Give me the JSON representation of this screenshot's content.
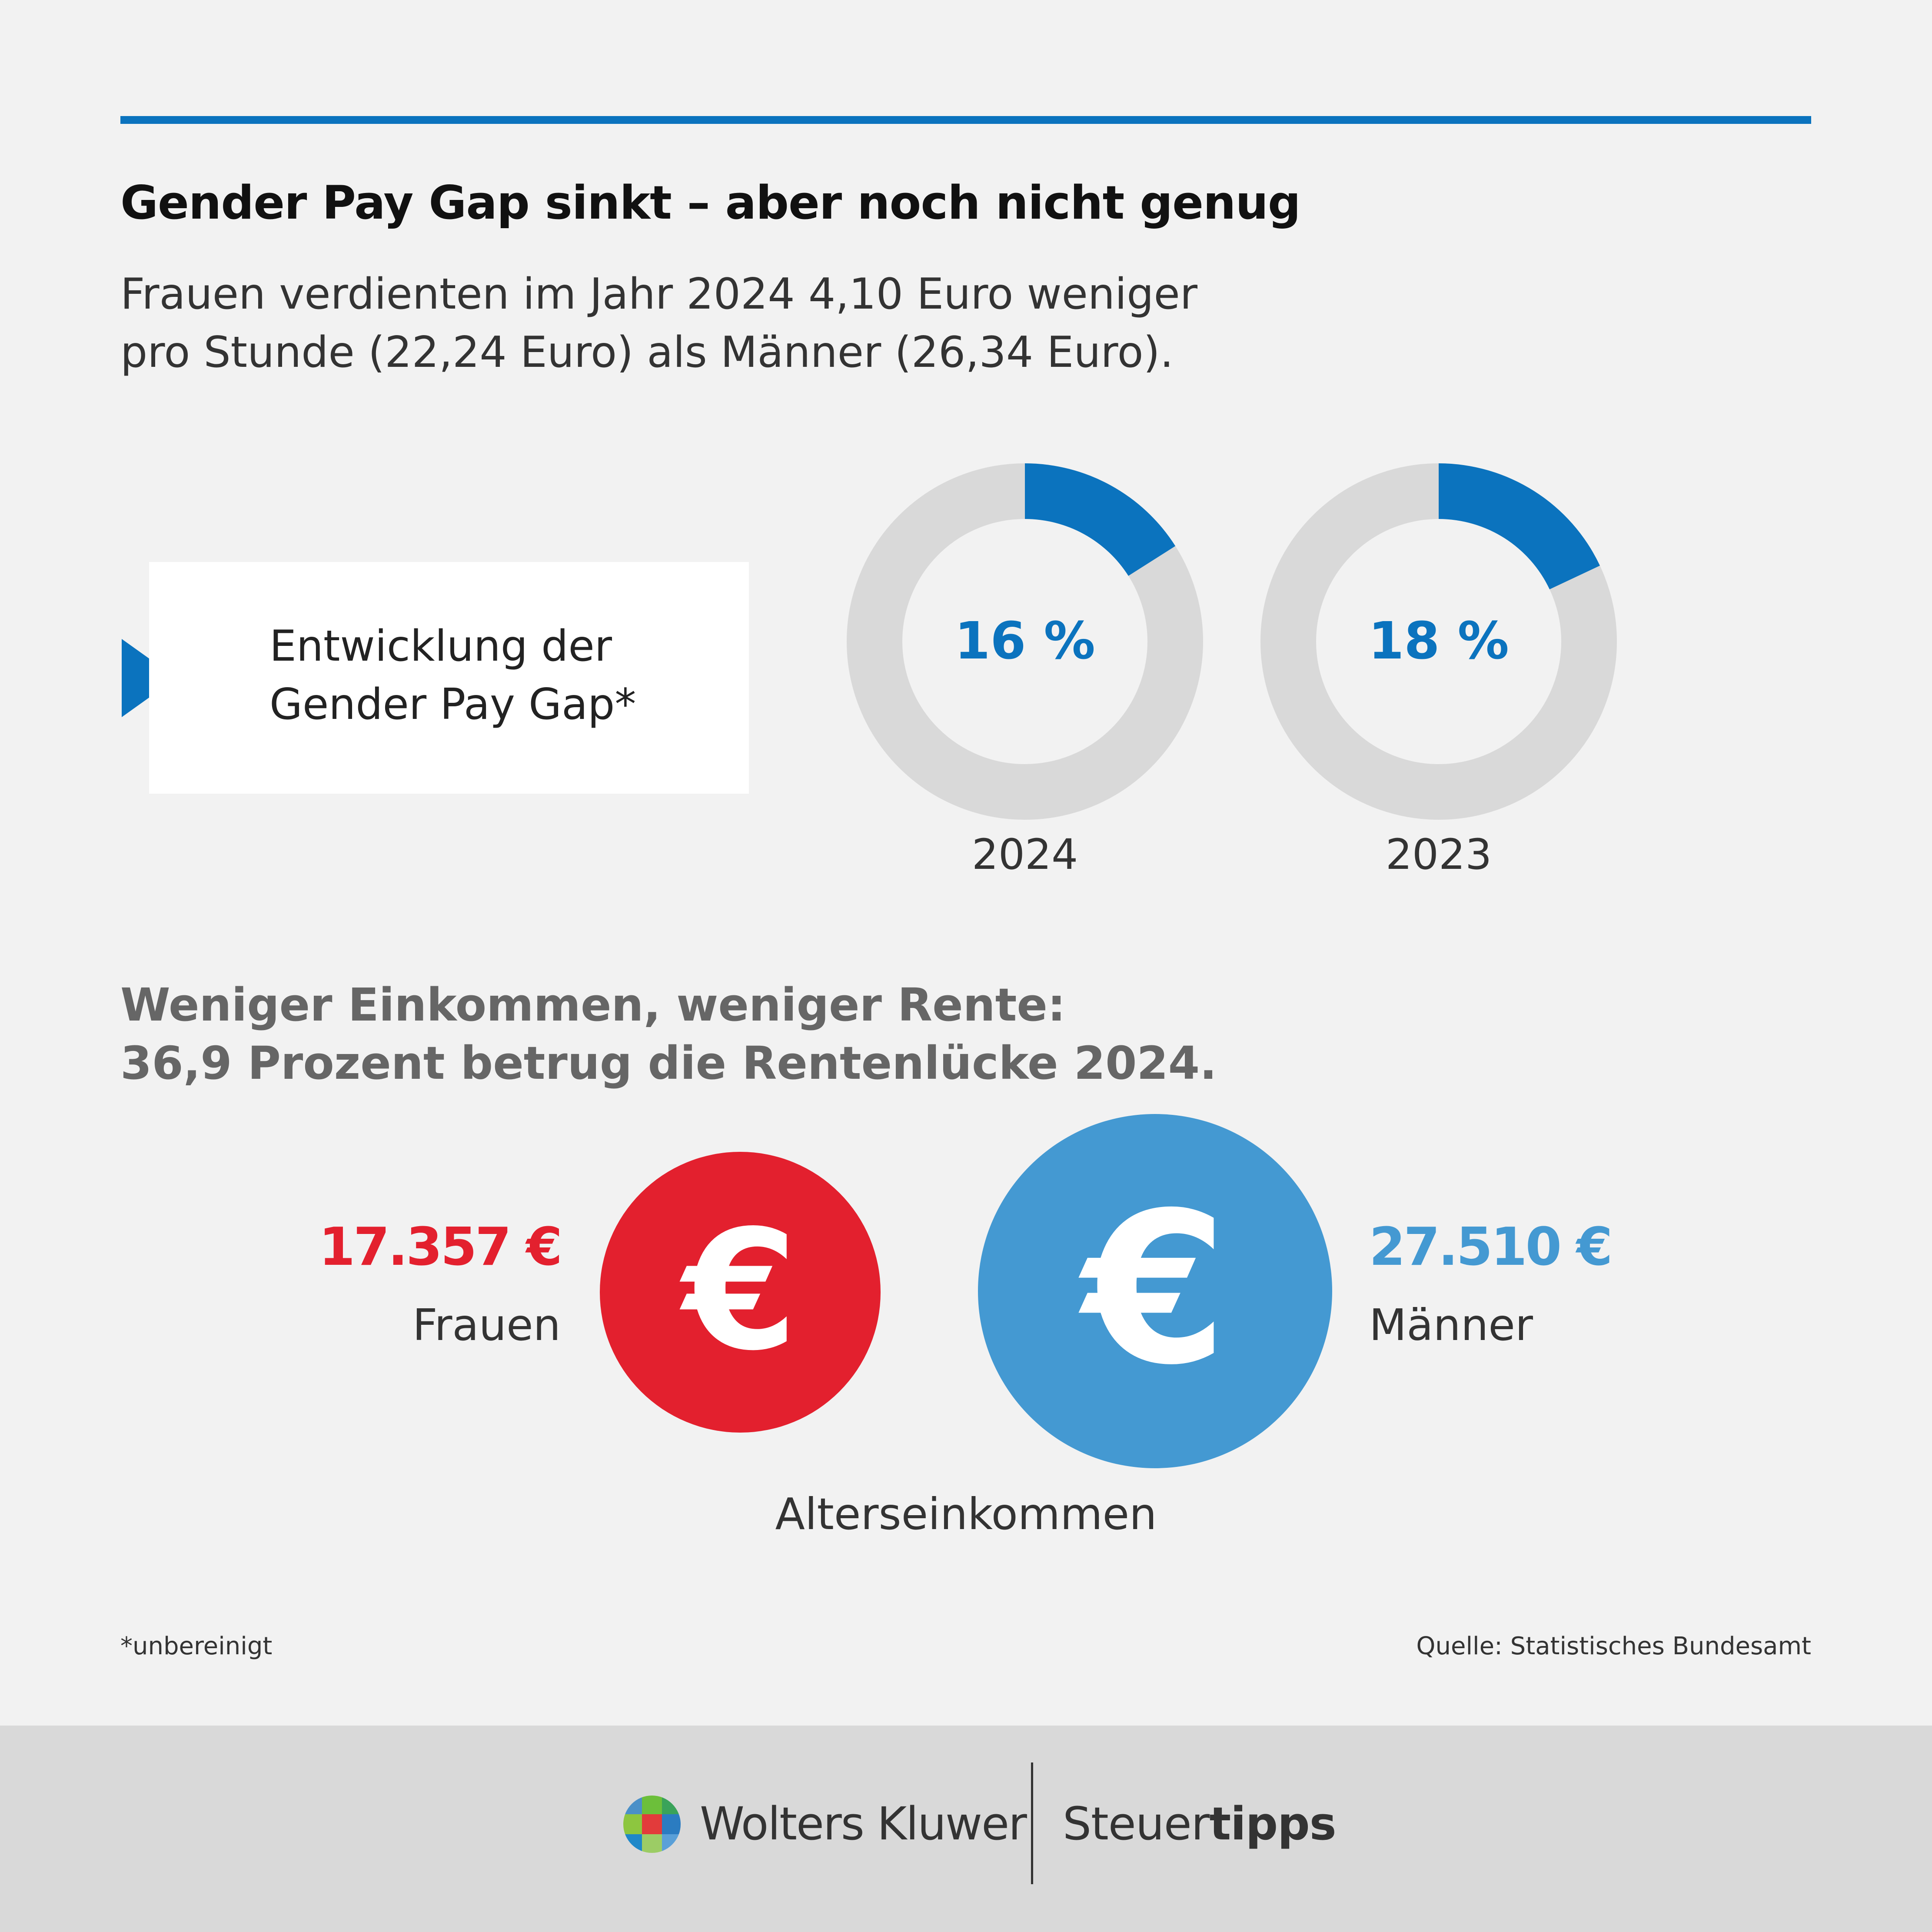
{
  "header": {
    "title": "Gender Pay Gap sinkt – aber noch nicht genug",
    "subtitle_line1": "Frauen verdienten im Jahr 2024 4,10 Euro weniger",
    "subtitle_line2": "pro Stunde (22,24 Euro) als Männer (26,34 Euro)."
  },
  "gap_card": {
    "line1": "Entwicklung der",
    "line2": "Gender Pay Gap*"
  },
  "section2": {
    "line1": "Weniger Einkommen, weniger Rente:",
    "line2": "36,9 Prozent betrug die Rentenlücke 2024."
  },
  "euro_symbol": "€",
  "pension": {
    "caption": "Alterseinkommen",
    "women_amount": "17.357 €",
    "women_label": "Frauen",
    "men_amount": "27.510 €",
    "men_label": "Männer"
  },
  "footnote": "*unbereinigt",
  "source": "Quelle: Statistisches Bundesamt",
  "footer": {
    "brand": "Wolters Kluwer",
    "product_regular": "Steuer",
    "product_bold": "tipps"
  },
  "colors": {
    "accent_blue": "#0b73be",
    "light_blue": "#4499d2",
    "red": "#e3202e",
    "donut_track": "#d9d9d9"
  },
  "chart_data": [
    {
      "type": "pie",
      "variant": "donut",
      "year": "2024",
      "value": 16,
      "label": "16 %",
      "max": 100
    },
    {
      "type": "pie",
      "variant": "donut",
      "year": "2023",
      "value": 18,
      "label": "18 %",
      "max": 100
    },
    {
      "type": "bar",
      "variant": "proportional-circles",
      "categories": [
        "Frauen",
        "Männer"
      ],
      "values": [
        17357,
        27510
      ],
      "value_labels": [
        "17.357 €",
        "27.510 €"
      ]
    }
  ]
}
